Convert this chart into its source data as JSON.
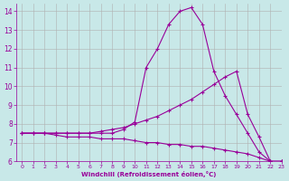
{
  "background_color": "#c8e8e8",
  "line_color": "#990099",
  "grid_color": "#b0b0b0",
  "xlabel": "Windchill (Refroidissement éolien,°C)",
  "xlabel_color": "#990099",
  "tick_color": "#990099",
  "xlim": [
    -0.5,
    23
  ],
  "ylim": [
    6,
    14.4
  ],
  "yticks": [
    6,
    7,
    8,
    9,
    10,
    11,
    12,
    13,
    14
  ],
  "xticks": [
    0,
    1,
    2,
    3,
    4,
    5,
    6,
    7,
    8,
    9,
    10,
    11,
    12,
    13,
    14,
    15,
    16,
    17,
    18,
    19,
    20,
    21,
    22,
    23
  ],
  "curve1_x": [
    0,
    1,
    2,
    3,
    4,
    5,
    6,
    7,
    8,
    9,
    10,
    11,
    12,
    13,
    14,
    15,
    16,
    17,
    18,
    19,
    20,
    21,
    22,
    23
  ],
  "curve1_y": [
    7.5,
    7.5,
    7.5,
    7.4,
    7.3,
    7.3,
    7.3,
    7.2,
    7.2,
    7.2,
    7.1,
    7.0,
    7.0,
    6.9,
    6.9,
    6.8,
    6.8,
    6.7,
    6.6,
    6.5,
    6.4,
    6.2,
    6.0,
    6.0
  ],
  "curve2_x": [
    0,
    1,
    2,
    3,
    4,
    5,
    6,
    7,
    8,
    9,
    10,
    11,
    12,
    13,
    14,
    15,
    16,
    17,
    18,
    19,
    20,
    21,
    22,
    23
  ],
  "curve2_y": [
    7.5,
    7.5,
    7.5,
    7.5,
    7.5,
    7.5,
    7.5,
    7.5,
    7.5,
    7.7,
    8.1,
    11.0,
    12.0,
    13.3,
    14.0,
    14.2,
    13.3,
    10.8,
    9.5,
    8.5,
    7.5,
    6.5,
    6.0,
    6.0
  ],
  "curve3_x": [
    0,
    1,
    2,
    3,
    4,
    5,
    6,
    7,
    8,
    9,
    10,
    11,
    12,
    13,
    14,
    15,
    16,
    17,
    18,
    19,
    20,
    21,
    22,
    23
  ],
  "curve3_y": [
    7.5,
    7.5,
    7.5,
    7.5,
    7.5,
    7.5,
    7.5,
    7.6,
    7.7,
    7.8,
    8.0,
    8.2,
    8.4,
    8.7,
    9.0,
    9.3,
    9.7,
    10.1,
    10.5,
    10.8,
    8.5,
    7.3,
    6.0,
    6.0
  ],
  "marker": "+",
  "markersize": 3,
  "linewidth": 0.8,
  "markeredgewidth": 0.8
}
